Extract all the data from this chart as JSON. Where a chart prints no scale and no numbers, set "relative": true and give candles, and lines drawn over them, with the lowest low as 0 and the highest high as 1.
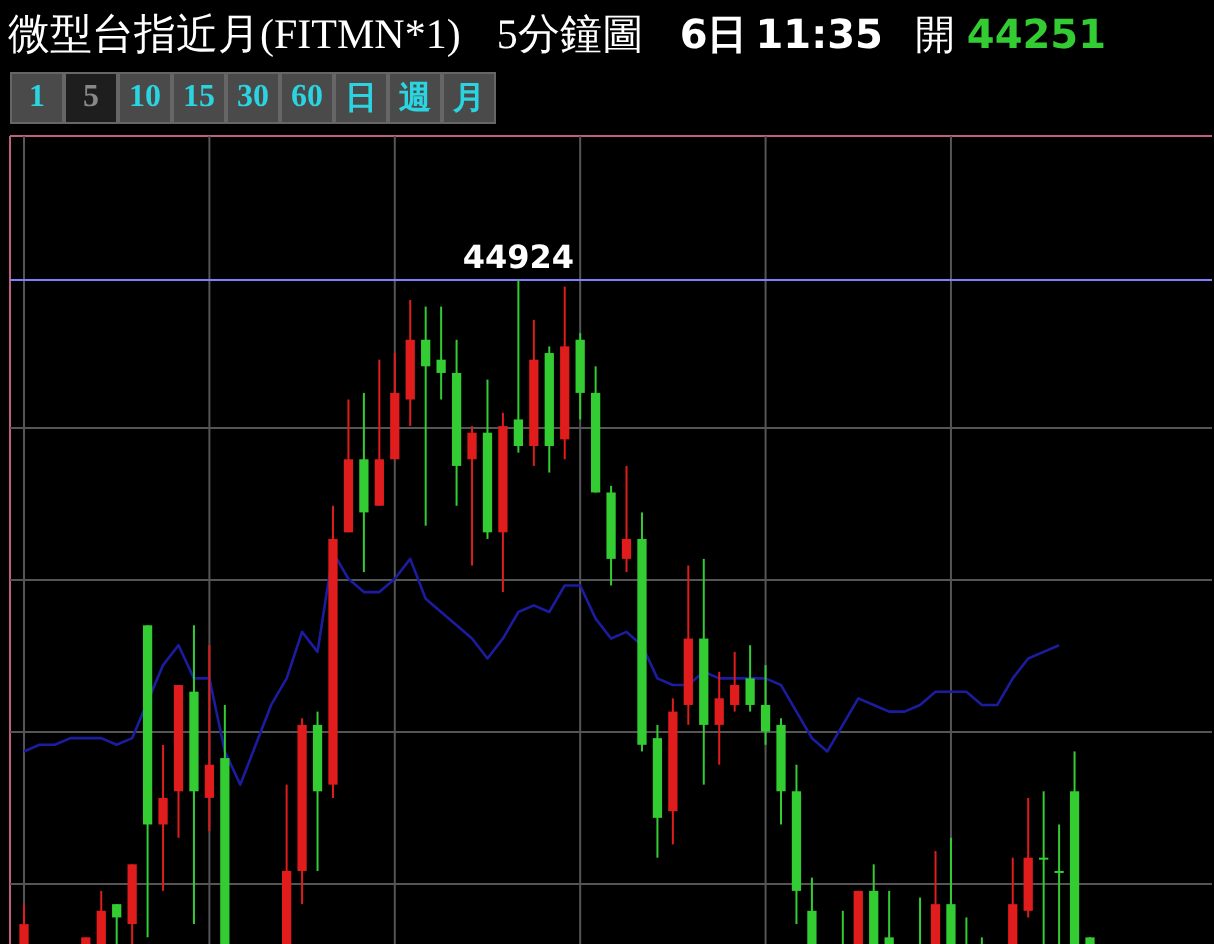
{
  "chart_data": {
    "type": "candlestick",
    "title": "微型台指近月(FITMN*1)",
    "subtitle": "5分鐘圖",
    "annotations": [
      "6日",
      "11:35",
      "開",
      "44251",
      "1 5 10 15 30 60 日 週 月",
      {
        "text": "44924",
        "y": 1
      }
    ],
    "relative": true,
    "grid": true,
    "categories": [
      null,
      null,
      null,
      null,
      null,
      null,
      null,
      null,
      null,
      null,
      null,
      null,
      null,
      null,
      null,
      null,
      null,
      null,
      null,
      null,
      null,
      null,
      null,
      null,
      null,
      null,
      null,
      null,
      null,
      null,
      null,
      null,
      null,
      null,
      null,
      null,
      null,
      null,
      null,
      null,
      null,
      null,
      null,
      null,
      null,
      null,
      null,
      null,
      null,
      null,
      null,
      null,
      null,
      null,
      null,
      null,
      null,
      null,
      null,
      null,
      null,
      null,
      null,
      null,
      null,
      null,
      null,
      null,
      null,
      null
    ],
    "ohlc": [
      [
        0,
        0.06,
        0,
        0.03
      ],
      null,
      null,
      null,
      [
        0,
        0.01,
        0,
        0.01
      ],
      [
        0,
        0.08,
        0,
        0.05
      ],
      [
        0.06,
        0.06,
        0,
        0.04
      ],
      [
        0.03,
        0.12,
        0,
        0.12
      ],
      [
        0.48,
        0.48,
        0.01,
        0.18
      ],
      [
        0.18,
        0.3,
        0.08,
        0.22
      ],
      [
        0.23,
        0.39,
        0.16,
        0.39
      ],
      [
        0.38,
        0.48,
        0.03,
        0.23
      ],
      [
        0.22,
        0.45,
        0.17,
        0.27
      ],
      [
        0.28,
        0.36,
        0,
        0
      ],
      null,
      null,
      null,
      [
        0,
        0.24,
        0,
        0.11
      ],
      [
        0.11,
        0.34,
        0.06,
        0.33
      ],
      [
        0.33,
        0.35,
        0.11,
        0.23
      ],
      [
        0.24,
        0.66,
        0.22,
        0.61
      ],
      [
        0.62,
        0.82,
        0.62,
        0.73
      ],
      [
        0.73,
        0.83,
        0.56,
        0.65
      ],
      [
        0.66,
        0.88,
        0.66,
        0.73
      ],
      [
        0.73,
        0.89,
        0.73,
        0.83
      ],
      [
        0.82,
        0.97,
        0.78,
        0.91
      ],
      [
        0.91,
        0.96,
        0.63,
        0.87
      ],
      [
        0.88,
        0.96,
        0.82,
        0.86
      ],
      [
        0.86,
        0.91,
        0.66,
        0.72
      ],
      [
        0.73,
        0.78,
        0.57,
        0.77
      ],
      [
        0.77,
        0.85,
        0.61,
        0.62
      ],
      [
        0.62,
        0.8,
        0.53,
        0.78
      ],
      [
        0.79,
        1,
        0.74,
        0.75
      ],
      [
        0.75,
        0.94,
        0.72,
        0.88
      ],
      [
        0.89,
        0.9,
        0.71,
        0.75
      ],
      [
        0.76,
        0.99,
        0.73,
        0.9
      ],
      [
        0.91,
        0.92,
        0.79,
        0.83
      ],
      [
        0.83,
        0.87,
        0.68,
        0.68
      ],
      [
        0.68,
        0.69,
        0.54,
        0.58
      ],
      [
        0.58,
        0.72,
        0.56,
        0.61
      ],
      [
        0.61,
        0.65,
        0.29,
        0.3
      ],
      [
        0.31,
        0.33,
        0.13,
        0.19
      ],
      [
        0.2,
        0.37,
        0.15,
        0.35
      ],
      [
        0.36,
        0.57,
        0.33,
        0.46
      ],
      [
        0.46,
        0.58,
        0.24,
        0.33
      ],
      [
        0.33,
        0.41,
        0.27,
        0.37
      ],
      [
        0.36,
        0.44,
        0.35,
        0.39
      ],
      [
        0.4,
        0.45,
        0.35,
        0.36
      ],
      [
        0.36,
        0.42,
        0.3,
        0.32
      ],
      [
        0.33,
        0.34,
        0.18,
        0.23
      ],
      [
        0.23,
        0.27,
        0.03,
        0.08
      ],
      [
        0.05,
        0.1,
        0,
        0
      ],
      null,
      [
        0,
        0.05,
        0,
        0
      ],
      [
        0,
        0.08,
        0,
        0.08
      ],
      [
        0.08,
        0.12,
        0,
        0
      ],
      [
        0.01,
        0.08,
        0,
        0
      ],
      null,
      [
        0,
        0.07,
        0,
        0
      ],
      [
        0,
        0.14,
        0,
        0.06
      ],
      [
        0.06,
        0.16,
        0,
        0
      ],
      [
        0,
        0.04,
        0,
        0
      ],
      [
        0,
        0.01,
        0,
        0
      ],
      null,
      [
        0,
        0.13,
        0,
        0.06
      ],
      [
        0.05,
        0.22,
        0.04,
        0.13
      ],
      [
        0.13,
        0.23,
        0,
        0.13
      ],
      [
        0.11,
        0.18,
        0,
        0.11
      ],
      [
        0.23,
        0.29,
        0,
        0
      ],
      [
        0.01,
        0.01,
        0,
        0
      ]
    ],
    "series": [
      {
        "type": "line",
        "color": "#1c1ca0",
        "values": [
          0.29,
          0.3,
          0.3,
          0.31,
          0.31,
          0.31,
          0.3,
          0.31,
          null,
          0.42,
          0.45,
          0.4,
          0.4,
          0.29,
          0.24,
          0.3,
          0.36,
          0.4,
          0.47,
          0.44,
          0.59,
          0.55,
          0.53,
          0.53,
          0.55,
          0.58,
          0.52,
          0.5,
          0.48,
          0.46,
          0.43,
          0.46,
          0.5,
          0.51,
          0.5,
          0.54,
          0.54,
          0.49,
          0.46,
          0.47,
          0.45,
          0.4,
          0.39,
          0.39,
          0.41,
          0.4,
          0.4,
          0.4,
          0.4,
          0.39,
          0.35,
          0.31,
          0.29,
          0.33,
          0.37,
          0.36,
          0.35,
          0.35,
          0.36,
          0.38,
          0.38,
          0.38,
          0.36,
          0.36,
          0.4,
          0.43,
          0.44,
          0.45,
          null,
          null
        ]
      }
    ],
    "ref_lines": [
      {
        "axis": "y",
        "value": 1,
        "color": "#8080ff"
      }
    ]
  }
}
